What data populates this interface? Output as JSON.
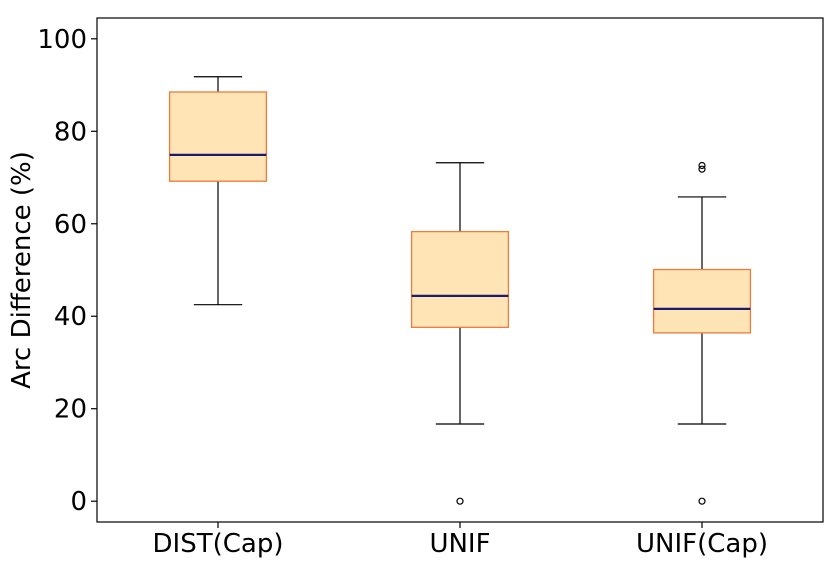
{
  "chart_data": {
    "type": "box",
    "title": "",
    "xlabel": "",
    "ylabel": "Arc Difference (%)",
    "ylim": [
      -4.5,
      104.5
    ],
    "yticks": [
      0,
      20,
      40,
      60,
      80,
      100
    ],
    "grid": false,
    "categories": [
      "DIST(Cap)",
      "UNIF",
      "UNIF(Cap)"
    ],
    "boxes": [
      {
        "category": "DIST(Cap)",
        "whisker_low": 42.5,
        "q1": 69.2,
        "median": 74.9,
        "q3": 88.5,
        "whisker_high": 91.8,
        "outliers": []
      },
      {
        "category": "UNIF",
        "whisker_low": 16.7,
        "q1": 37.6,
        "median": 44.4,
        "q3": 58.3,
        "whisker_high": 73.2,
        "outliers": [
          0
        ]
      },
      {
        "category": "UNIF(Cap)",
        "whisker_low": 16.7,
        "q1": 36.4,
        "median": 41.6,
        "q3": 50.1,
        "whisker_high": 65.8,
        "outliers": [
          0,
          71.8,
          72.6
        ]
      }
    ],
    "colors": {
      "box_fill": "#FFE4B5",
      "box_edge": "#F07A3A",
      "median": "#1A1A6E",
      "whisker": "#000000",
      "flier": "#000000",
      "axis": "#000000"
    }
  }
}
